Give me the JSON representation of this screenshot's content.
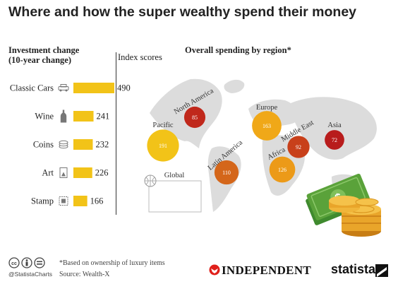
{
  "title": "Where and how the super wealthy spend their money",
  "chart_data": [
    {
      "type": "bar",
      "title": "Investment change\n(10-year change)",
      "axis_label": "Index scores",
      "categories": [
        "Classic Cars",
        "Wine",
        "Coins",
        "Art",
        "Stamp"
      ],
      "values": [
        490,
        241,
        232,
        226,
        166
      ],
      "icons": [
        "car-icon",
        "wine-bottle-icon",
        "coins-icon",
        "art-frame-icon",
        "stamp-icon"
      ],
      "bar_color": "#f2c318"
    },
    {
      "type": "scatter",
      "title": "Overall spending by region*",
      "points": [
        {
          "label": "Pacific",
          "value": 191,
          "color": "#f2c318"
        },
        {
          "label": "North America",
          "value": 85,
          "color": "#c0281b"
        },
        {
          "label": "Latin America",
          "value": 110,
          "color": "#d4661a"
        },
        {
          "label": "Europe",
          "value": 163,
          "color": "#f0a818"
        },
        {
          "label": "Middle East",
          "value": 92,
          "color": "#c8401a"
        },
        {
          "label": "Africa",
          "value": 126,
          "color": "#ec9a18"
        },
        {
          "label": "Asia",
          "value": 72,
          "color": "#b81c1c"
        },
        {
          "label": "Global",
          "value": 100,
          "color": "#e06a14"
        }
      ]
    }
  ],
  "footer": {
    "note": "*Based on ownership of luxury items",
    "source": "Source: Wealth-X",
    "handle": "@StatistaCharts",
    "publisher": "INDEPENDENT",
    "brand": "statista"
  },
  "colors": {
    "money_green": "#5aa23a",
    "coin_gold": "#e9a52a",
    "map_gray": "#d9d9d9"
  }
}
